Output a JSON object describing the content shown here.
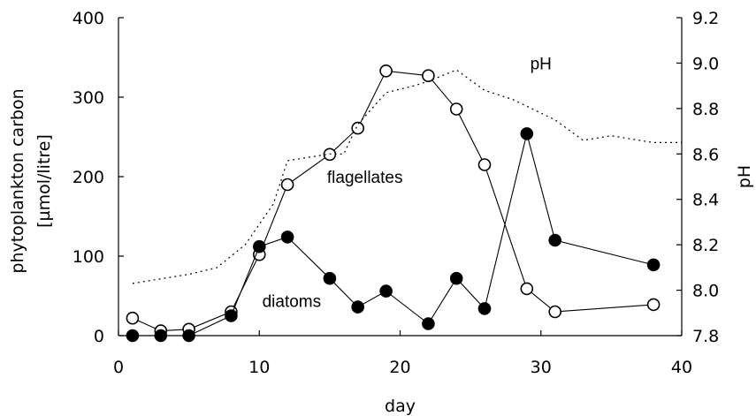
{
  "chart_data": {
    "type": "line",
    "xlabel": "day",
    "ylabel_left": [
      "phytoplankton carbon",
      "[µmol/litre]"
    ],
    "ylabel_right": "pH",
    "xlim": [
      0,
      40
    ],
    "ylim_left": [
      0,
      400
    ],
    "ylim_right": [
      7.8,
      9.2
    ],
    "x_ticks": [
      "0",
      "10",
      "20",
      "30",
      "40"
    ],
    "y_ticks_left": [
      "0",
      "100",
      "200",
      "300",
      "400"
    ],
    "y_ticks_right": [
      "7.8",
      "8.0",
      "8.2",
      "8.4",
      "8.6",
      "8.8",
      "9.0",
      "9.2"
    ],
    "grid": false,
    "series": [
      {
        "name": "flagellates",
        "axis": "left",
        "marker": "open-circle",
        "line": "solid",
        "x": [
          1,
          3,
          5,
          8,
          10,
          12,
          15,
          17,
          19,
          22,
          24,
          26,
          29,
          31,
          38
        ],
        "y": [
          22,
          6,
          8,
          30,
          102,
          190,
          228,
          261,
          333,
          327,
          285,
          215,
          59,
          30,
          39
        ]
      },
      {
        "name": "diatoms",
        "axis": "left",
        "marker": "filled-circle",
        "line": "solid",
        "x": [
          1,
          3,
          5,
          8,
          10,
          12,
          15,
          17,
          19,
          22,
          24,
          26,
          29,
          31,
          38
        ],
        "y": [
          0,
          0,
          0,
          25,
          112,
          124,
          72,
          36,
          56,
          15,
          72,
          34,
          254,
          120,
          89
        ]
      },
      {
        "name": "pH",
        "axis": "right",
        "marker": "none",
        "line": "dotted",
        "x": [
          1,
          3,
          5,
          7,
          9,
          11,
          12,
          13,
          15,
          16,
          17,
          19,
          21,
          22,
          24,
          26,
          28,
          31,
          33,
          35,
          37,
          38,
          40
        ],
        "y": [
          8.03,
          8.05,
          8.07,
          8.1,
          8.2,
          8.38,
          8.57,
          8.58,
          8.6,
          8.6,
          8.73,
          8.87,
          8.9,
          8.92,
          8.97,
          8.88,
          8.84,
          8.75,
          8.66,
          8.68,
          8.66,
          8.65,
          8.65
        ]
      }
    ],
    "annotations": [
      {
        "text": "pH",
        "x": 30,
        "y_right": 9.0
      },
      {
        "text": "flagellates",
        "x": 17.5,
        "y": 200
      },
      {
        "text": "diatoms",
        "x": 12.3,
        "y": 44
      }
    ]
  }
}
